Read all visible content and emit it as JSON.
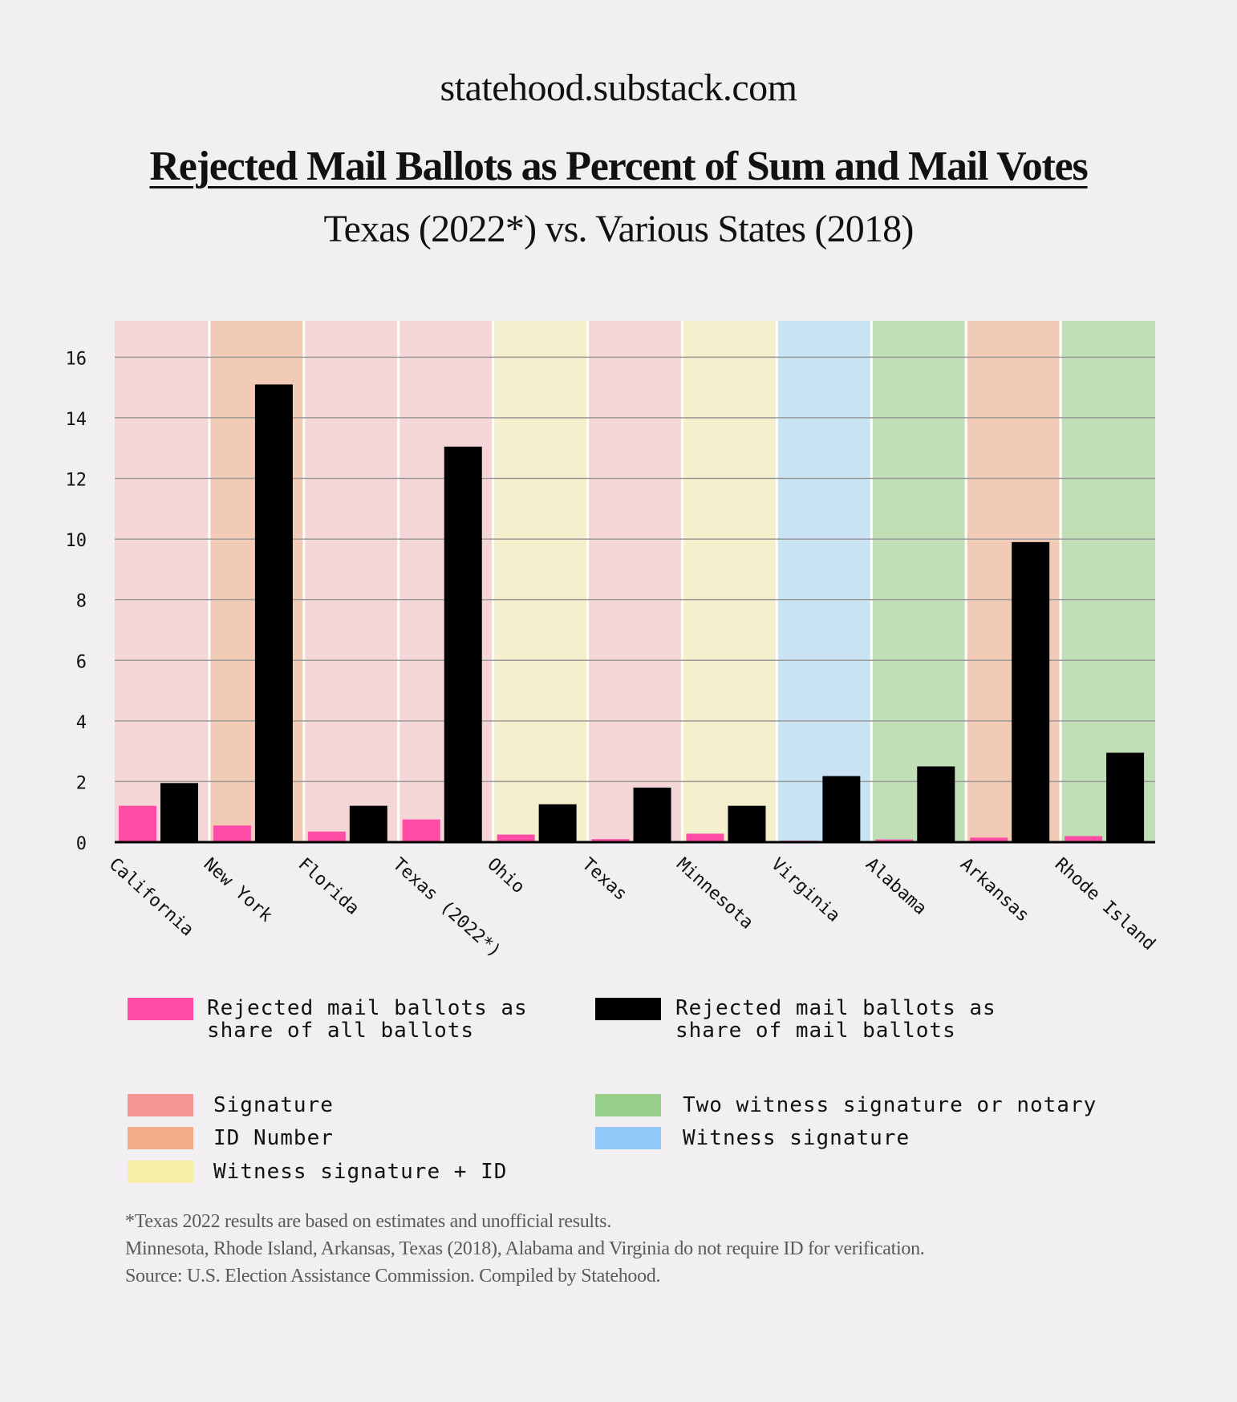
{
  "site": "statehood.substack.com",
  "title": "Rejected Mail Ballots as Percent of Sum and Mail Votes",
  "subtitle": "Texas (2022*)  vs. Various States (2018)",
  "colors": {
    "background": "#f1eff2",
    "all_ballots_bar": "#ff4da6",
    "mail_ballots_bar": "#000000",
    "signature": "#f39590",
    "id_number": "#f2ae86",
    "witness_signature_id": "#f7efa8",
    "two_witness_notary": "#97cf8b",
    "witness_signature": "#90c8f8"
  },
  "chart_data": {
    "type": "bar",
    "categories": [
      "California",
      "New York",
      "Florida",
      "Texas (2022*)",
      "Ohio",
      "Texas",
      "Minnesota",
      "Virginia",
      "Alabama",
      "Arkansas",
      "Rhode Island"
    ],
    "series": [
      {
        "name": "Rejected mail ballots as share of all ballots",
        "color": "#ff4da6",
        "values": [
          1.2,
          0.55,
          0.35,
          0.75,
          0.25,
          0.1,
          0.28,
          0.05,
          0.09,
          0.15,
          0.2
        ]
      },
      {
        "name": "Rejected mail ballots as share of mail ballots",
        "color": "#000000",
        "values": [
          1.95,
          15.1,
          1.2,
          13.05,
          1.25,
          1.8,
          1.2,
          2.18,
          2.5,
          9.9,
          2.95
        ]
      }
    ],
    "category_requirement": [
      "signature",
      "id_number",
      "signature",
      "signature",
      "witness_signature_id",
      "signature",
      "witness_signature_id",
      "witness_signature",
      "two_witness_notary",
      "id_number",
      "two_witness_notary"
    ],
    "requirement_colors": {
      "signature": "#f5d6d7",
      "id_number": "#f2cbb6",
      "witness_signature_id": "#f4efcc",
      "witness_signature": "#c9e3f3",
      "two_witness_notary": "#c0dfb7"
    },
    "y_ticks": [
      "0",
      "2",
      "4",
      "6",
      "8",
      "10",
      "12",
      "14",
      "16"
    ],
    "ylim": [
      0,
      17.2
    ],
    "grid": true,
    "xlabel": "",
    "ylabel": ""
  },
  "legend_series": [
    {
      "label": "Rejected mail ballots as\nshare of all ballots",
      "color": "#ff4da6"
    },
    {
      "label": "Rejected mail ballots as\nshare of mail ballots",
      "color": "#000000"
    }
  ],
  "legend_requirements": [
    {
      "label": "Signature",
      "color": "#f39590"
    },
    {
      "label": "ID Number",
      "color": "#f2ae86"
    },
    {
      "label": "Witness signature + ID",
      "color": "#f7efa8"
    },
    {
      "label": "Two witness signature or notary",
      "color": "#97cf8b"
    },
    {
      "label": "Witness signature",
      "color": "#90c8f8"
    }
  ],
  "notes": [
    "*Texas 2022 results are based on estimates and unofficial results.",
    "Minnesota, Rhode Island, Arkansas, Texas (2018), Alabama and Virginia do not require ID for verification.",
    "Source: U.S. Election Assistance Commission. Compiled by Statehood."
  ]
}
